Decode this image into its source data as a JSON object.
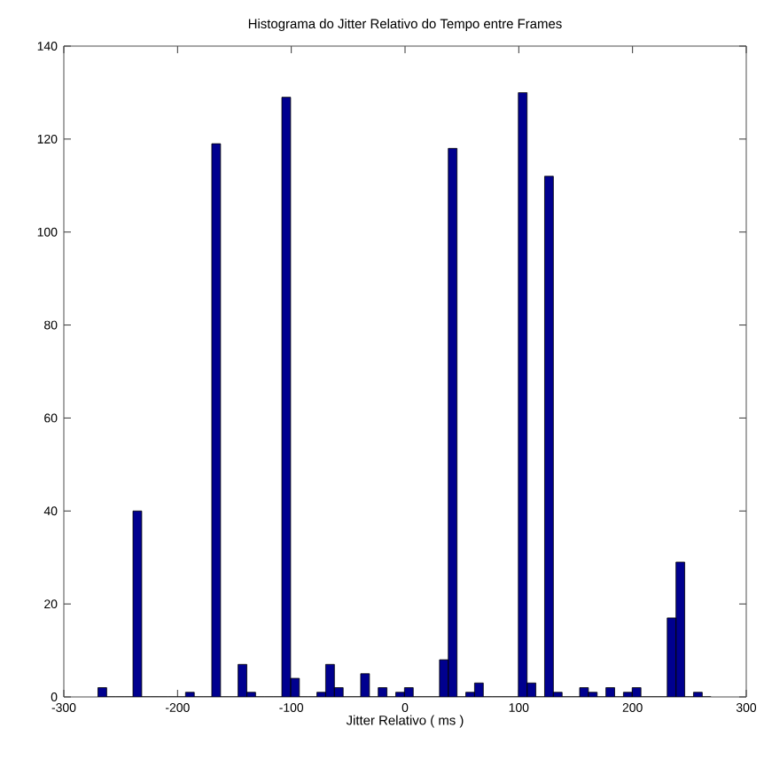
{
  "chart_data": {
    "type": "histogram",
    "title": "Histograma do Jitter Relativo do Tempo entre Frames",
    "xlabel": "Jitter Relativo ( ms )",
    "bins": [
      -270.0,
      -262.3,
      -254.6,
      -246.9,
      -239.2,
      -231.5,
      -223.8,
      -216.1,
      -208.4,
      -200.7,
      -193.0,
      -185.3,
      -177.6,
      -169.9,
      -162.2,
      -154.5,
      -146.8,
      -139.1,
      -131.4,
      -123.7,
      -116.0,
      -108.3,
      -100.6,
      -92.9,
      -85.2,
      -77.5,
      -69.8,
      -62.1,
      -54.4,
      -46.7,
      -39.0,
      -31.3,
      -23.6,
      -15.9,
      -8.2,
      -0.5,
      7.2,
      14.9,
      22.6,
      30.3,
      38.0,
      45.7,
      53.4,
      61.1,
      68.8,
      76.5,
      84.2,
      91.9,
      99.6,
      107.3,
      115.0,
      122.7,
      130.4,
      138.1,
      145.8,
      153.5,
      161.2,
      168.9,
      176.6,
      184.3,
      192.0,
      199.7,
      207.4,
      215.1,
      222.8,
      230.5,
      238.2,
      245.9,
      253.6,
      261.3,
      269.0
    ],
    "values": [
      2,
      0,
      0,
      0,
      40,
      0,
      0,
      0,
      0,
      0,
      1,
      0,
      0,
      119,
      0,
      0,
      7,
      1,
      0,
      0,
      0,
      129,
      4,
      0,
      0,
      1,
      7,
      2,
      0,
      0,
      5,
      0,
      2,
      0,
      1,
      2,
      0,
      0,
      0,
      8,
      118,
      0,
      1,
      3,
      0,
      0,
      0,
      0,
      130,
      3,
      0,
      112,
      1,
      0,
      0,
      2,
      1,
      0,
      2,
      0,
      1,
      2,
      0,
      0,
      0,
      17,
      29,
      0,
      1,
      0
    ],
    "color": "#00008f",
    "xlim": [
      -300,
      300
    ],
    "xticks": [
      -300,
      -200,
      -100,
      0,
      100,
      200,
      300
    ],
    "ylim": [
      0,
      140
    ],
    "yticks": [
      0,
      20,
      40,
      60,
      80,
      100,
      120,
      140
    ],
    "grid": false
  }
}
